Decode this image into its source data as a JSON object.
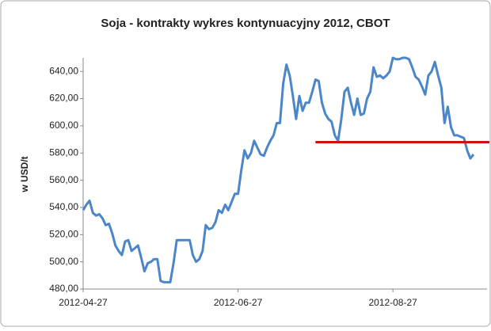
{
  "chart_data": {
    "type": "line",
    "title": "Soja - kontrakty wykres kontynuacyjny 2012, CBOT",
    "y_label": "w USD/t",
    "categories": [
      "2012-04-27",
      null,
      null,
      null,
      null,
      null,
      null,
      null,
      null,
      null,
      null,
      null,
      null,
      null,
      null,
      null,
      null,
      null,
      null,
      null,
      null,
      null,
      null,
      null,
      null,
      null,
      null,
      null,
      null,
      null,
      null,
      null,
      null,
      null,
      null,
      null,
      null,
      null,
      null,
      null,
      null,
      null,
      null,
      null,
      null,
      null,
      null,
      null,
      "2012-06-27",
      null,
      null,
      null,
      null,
      null,
      null,
      null,
      null,
      null,
      null,
      null,
      null,
      null,
      null,
      null,
      null,
      null,
      null,
      null,
      null,
      null,
      null,
      null,
      null,
      null,
      null,
      null,
      null,
      null,
      null,
      null,
      null,
      null,
      null,
      null,
      null,
      null,
      null,
      null,
      null,
      null,
      null,
      null,
      null,
      null,
      null,
      null,
      "2012-08-27",
      null,
      null,
      null,
      null,
      null,
      null,
      null,
      null,
      null,
      null,
      null,
      null,
      null,
      null,
      null,
      null,
      null,
      null,
      null,
      null,
      null,
      null,
      null,
      null,
      null
    ],
    "series": [
      {
        "name": "Soja",
        "color": "#4a86c8",
        "values": [
          538,
          542,
          545,
          536,
          534,
          535,
          532,
          527,
          528,
          521,
          512,
          508,
          505,
          515,
          516,
          508,
          510,
          512,
          503,
          493,
          499,
          500,
          502,
          502,
          486,
          485,
          485,
          485,
          499,
          516,
          516,
          516,
          516,
          516,
          505,
          500,
          502,
          508,
          527,
          524,
          525,
          529,
          538,
          536,
          542,
          538,
          544,
          550,
          550,
          567,
          582,
          576,
          580,
          589,
          584,
          579,
          578,
          584,
          589,
          593,
          602,
          602,
          631,
          645,
          637,
          622,
          605,
          622,
          611,
          617,
          617,
          625,
          634,
          633,
          617,
          609,
          605,
          603,
          593,
          589,
          605,
          625,
          628,
          617,
          608,
          620,
          608,
          609,
          620,
          625,
          643,
          636,
          637,
          635,
          637,
          640,
          650,
          649,
          649,
          650,
          650,
          649,
          643,
          636,
          634,
          629,
          623,
          637,
          640,
          647,
          637,
          628,
          602,
          614,
          599,
          593,
          593,
          592,
          591,
          582,
          576,
          579
        ]
      }
    ],
    "reference_line": {
      "value": 588,
      "start_index": 72,
      "color": "#d01010"
    },
    "ylim": [
      480,
      650
    ],
    "yticks": [
      {
        "value": 480,
        "label": "480,00"
      },
      {
        "value": 500,
        "label": "500,00"
      },
      {
        "value": 520,
        "label": "520,00"
      },
      {
        "value": 540,
        "label": "540,00"
      },
      {
        "value": 560,
        "label": "560,00"
      },
      {
        "value": 580,
        "label": "580,00"
      },
      {
        "value": 600,
        "label": "600,00"
      },
      {
        "value": 620,
        "label": "620,00"
      },
      {
        "value": 640,
        "label": "640,00"
      }
    ],
    "grid": false
  }
}
